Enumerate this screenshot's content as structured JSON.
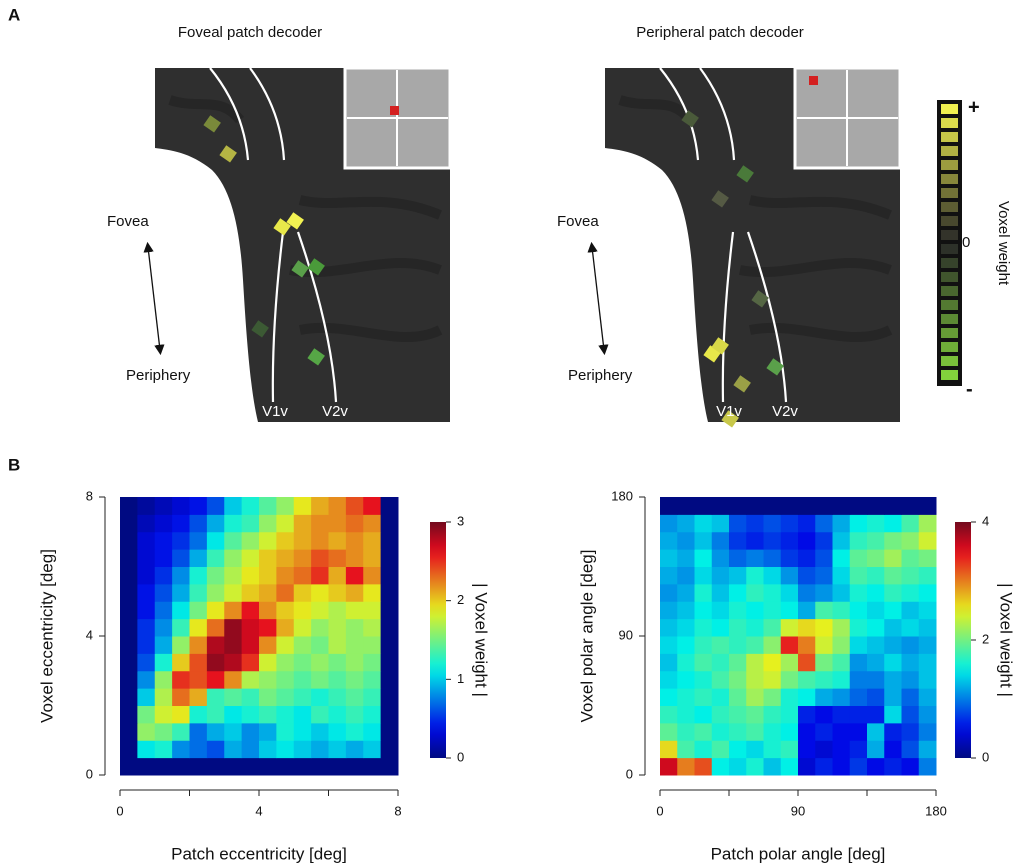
{
  "panel_a": {
    "label": "A",
    "panels": [
      {
        "title": "Foveal patch decoder",
        "fovea": "Fovea",
        "periphery": "Periphery",
        "v1": "V1v",
        "v2": "V2v"
      },
      {
        "title": "Peripheral patch decoder",
        "fovea": "Fovea",
        "periphery": "Periphery",
        "v1": "V1v",
        "v2": "V2v"
      }
    ],
    "colorbar": {
      "plus": "+",
      "zero": "0",
      "minus": "-",
      "label": "Voxel weight"
    }
  },
  "panel_b": {
    "label": "B"
  },
  "chart_data": [
    {
      "type": "heatmap",
      "x_label": "Patch eccentricity [deg]",
      "y_label": "Voxel eccentricity [deg]",
      "xlim": [
        0,
        8
      ],
      "ylim": [
        0,
        8
      ],
      "xticks": [
        0,
        4,
        8
      ],
      "x_minor_ticks": [
        2,
        6
      ],
      "yticks": [
        0,
        4,
        8
      ],
      "zlim": [
        0,
        3
      ],
      "colorbar_ticks": [
        0,
        1,
        2,
        3
      ],
      "colorbar_label": "| Voxel weight |",
      "z": [
        [
          0,
          0,
          0,
          0,
          0,
          0,
          0,
          0,
          0,
          0,
          0,
          0,
          0,
          0,
          0,
          0
        ],
        [
          0,
          1.1,
          1.2,
          0.8,
          0.7,
          0.6,
          0.9,
          0.8,
          1.0,
          1.1,
          1.0,
          0.9,
          1.0,
          0.9,
          1.0,
          0
        ],
        [
          0,
          1.6,
          1.5,
          1.3,
          0.7,
          0.9,
          1.0,
          0.8,
          0.9,
          1.2,
          1.1,
          1.0,
          1.1,
          1.2,
          1.1,
          0
        ],
        [
          0,
          1.5,
          1.8,
          1.9,
          1.2,
          1.3,
          1.1,
          1.2,
          1.3,
          1.2,
          1.1,
          1.3,
          1.2,
          1.3,
          1.2,
          0
        ],
        [
          0,
          1.0,
          1.7,
          2.3,
          2.1,
          1.3,
          1.4,
          1.3,
          1.5,
          1.4,
          1.3,
          1.2,
          1.3,
          1.4,
          1.3,
          0
        ],
        [
          0,
          0.8,
          1.6,
          2.5,
          2.4,
          2.6,
          2.2,
          1.7,
          1.6,
          1.5,
          1.4,
          1.5,
          1.4,
          1.5,
          1.4,
          0
        ],
        [
          0,
          0.6,
          1.2,
          2.0,
          2.4,
          2.9,
          2.8,
          2.5,
          1.8,
          1.6,
          1.5,
          1.6,
          1.5,
          1.6,
          1.5,
          0
        ],
        [
          0,
          0.5,
          0.9,
          1.6,
          2.2,
          2.8,
          2.9,
          2.7,
          2.2,
          1.8,
          1.6,
          1.5,
          1.7,
          1.6,
          1.6,
          0
        ],
        [
          0,
          0.5,
          0.8,
          1.3,
          1.9,
          2.3,
          2.9,
          2.7,
          2.6,
          2.1,
          1.8,
          1.6,
          1.7,
          1.6,
          1.7,
          0
        ],
        [
          0,
          0.4,
          0.7,
          1.1,
          1.5,
          1.9,
          2.2,
          2.6,
          2.2,
          2.0,
          1.9,
          1.8,
          1.7,
          1.8,
          1.8,
          0
        ],
        [
          0,
          0.4,
          0.6,
          0.9,
          1.3,
          1.6,
          1.8,
          2.0,
          2.1,
          2.3,
          2.0,
          1.9,
          2.0,
          2.1,
          1.9,
          0
        ],
        [
          0,
          0.3,
          0.5,
          0.8,
          1.2,
          1.5,
          1.7,
          1.9,
          2.0,
          2.2,
          2.3,
          2.5,
          2.1,
          2.6,
          2.2,
          0
        ],
        [
          0,
          0.3,
          0.4,
          0.6,
          0.9,
          1.3,
          1.6,
          1.8,
          2.0,
          2.1,
          2.2,
          2.4,
          2.3,
          2.2,
          2.1,
          0
        ],
        [
          0,
          0.3,
          0.4,
          0.5,
          0.7,
          1.1,
          1.4,
          1.6,
          1.8,
          2.0,
          2.1,
          2.2,
          2.1,
          2.2,
          2.1,
          0
        ],
        [
          0,
          0.2,
          0.3,
          0.4,
          0.6,
          0.9,
          1.2,
          1.3,
          1.6,
          1.8,
          2.1,
          2.2,
          2.2,
          2.3,
          2.2,
          0
        ],
        [
          0,
          0.1,
          0.2,
          0.3,
          0.4,
          0.6,
          1.0,
          1.2,
          1.4,
          1.6,
          1.9,
          2.1,
          2.2,
          2.4,
          2.6,
          0
        ]
      ]
    },
    {
      "type": "heatmap",
      "x_label": "Patch polar angle [deg]",
      "y_label": "Voxel polar angle [deg]",
      "xlim": [
        0,
        180
      ],
      "ylim": [
        0,
        180
      ],
      "xticks": [
        0,
        90,
        180
      ],
      "x_minor_ticks": [
        45,
        135
      ],
      "yticks": [
        0,
        90,
        180
      ],
      "zlim": [
        0,
        4
      ],
      "colorbar_ticks": [
        0,
        2,
        4
      ],
      "colorbar_label": "| Voxel weight |",
      "z": [
        [
          3.6,
          3.0,
          3.2,
          1.5,
          1.4,
          1.6,
          1.3,
          1.5,
          0.4,
          0.6,
          0.5,
          0.7,
          0.5,
          0.6,
          0.5,
          1.0
        ],
        [
          2.6,
          1.8,
          1.6,
          1.8,
          1.5,
          1.4,
          1.6,
          1.7,
          0.5,
          0.4,
          0.5,
          0.6,
          1.2,
          0.5,
          0.8,
          1.2
        ],
        [
          1.9,
          1.7,
          1.8,
          1.6,
          1.7,
          1.8,
          1.6,
          1.5,
          0.5,
          0.6,
          0.5,
          0.5,
          1.3,
          0.6,
          0.7,
          1.0
        ],
        [
          1.7,
          1.6,
          1.5,
          1.7,
          1.8,
          1.9,
          1.7,
          1.6,
          0.6,
          0.5,
          0.6,
          0.6,
          0.6,
          1.4,
          0.8,
          1.1
        ],
        [
          1.5,
          1.6,
          1.7,
          1.6,
          1.9,
          2.2,
          2.0,
          1.6,
          1.5,
          1.2,
          1.1,
          0.9,
          0.8,
          1.2,
          0.9,
          1.2
        ],
        [
          1.4,
          1.5,
          1.6,
          1.8,
          2.0,
          2.3,
          2.4,
          2.0,
          1.8,
          1.7,
          1.6,
          1.0,
          1.0,
          1.2,
          1.1,
          1.3
        ],
        [
          1.3,
          1.6,
          1.8,
          1.7,
          1.9,
          2.3,
          2.5,
          2.2,
          3.2,
          2.0,
          1.8,
          1.1,
          1.2,
          1.4,
          1.2,
          1.3
        ],
        [
          1.4,
          1.5,
          1.7,
          1.8,
          1.7,
          1.8,
          2.1,
          3.4,
          3.0,
          2.4,
          2.1,
          1.4,
          1.3,
          1.2,
          1.1,
          1.2
        ],
        [
          1.3,
          1.4,
          1.6,
          1.5,
          1.7,
          1.6,
          1.8,
          2.4,
          2.6,
          2.5,
          2.2,
          1.6,
          1.5,
          1.3,
          1.4,
          1.3
        ],
        [
          1.2,
          1.3,
          1.5,
          1.4,
          1.6,
          1.5,
          1.6,
          1.5,
          1.2,
          1.8,
          1.7,
          1.5,
          1.4,
          1.5,
          1.3,
          1.4
        ],
        [
          1.1,
          1.2,
          1.6,
          1.3,
          1.5,
          1.7,
          1.6,
          1.4,
          1.0,
          1.1,
          1.3,
          1.6,
          1.5,
          1.7,
          1.6,
          1.5
        ],
        [
          1.2,
          1.1,
          1.4,
          1.2,
          1.3,
          1.6,
          1.4,
          1.1,
          0.8,
          0.9,
          1.4,
          1.8,
          1.7,
          1.9,
          1.8,
          1.7
        ],
        [
          1.3,
          1.2,
          1.5,
          1.1,
          0.9,
          1.0,
          0.9,
          0.7,
          0.6,
          0.8,
          1.5,
          1.9,
          2.0,
          2.2,
          1.9,
          2.0
        ],
        [
          1.2,
          1.1,
          1.3,
          1.0,
          0.7,
          0.6,
          0.7,
          0.6,
          0.5,
          0.7,
          1.3,
          1.7,
          1.8,
          2.0,
          2.1,
          2.4
        ],
        [
          1.1,
          1.2,
          1.4,
          1.3,
          0.8,
          0.7,
          0.8,
          0.7,
          0.6,
          0.9,
          1.2,
          1.5,
          1.6,
          1.5,
          1.8,
          2.2
        ],
        [
          0,
          0,
          0,
          0,
          0,
          0,
          0,
          0,
          0,
          0,
          0,
          0,
          0,
          0,
          0,
          0
        ]
      ]
    }
  ]
}
